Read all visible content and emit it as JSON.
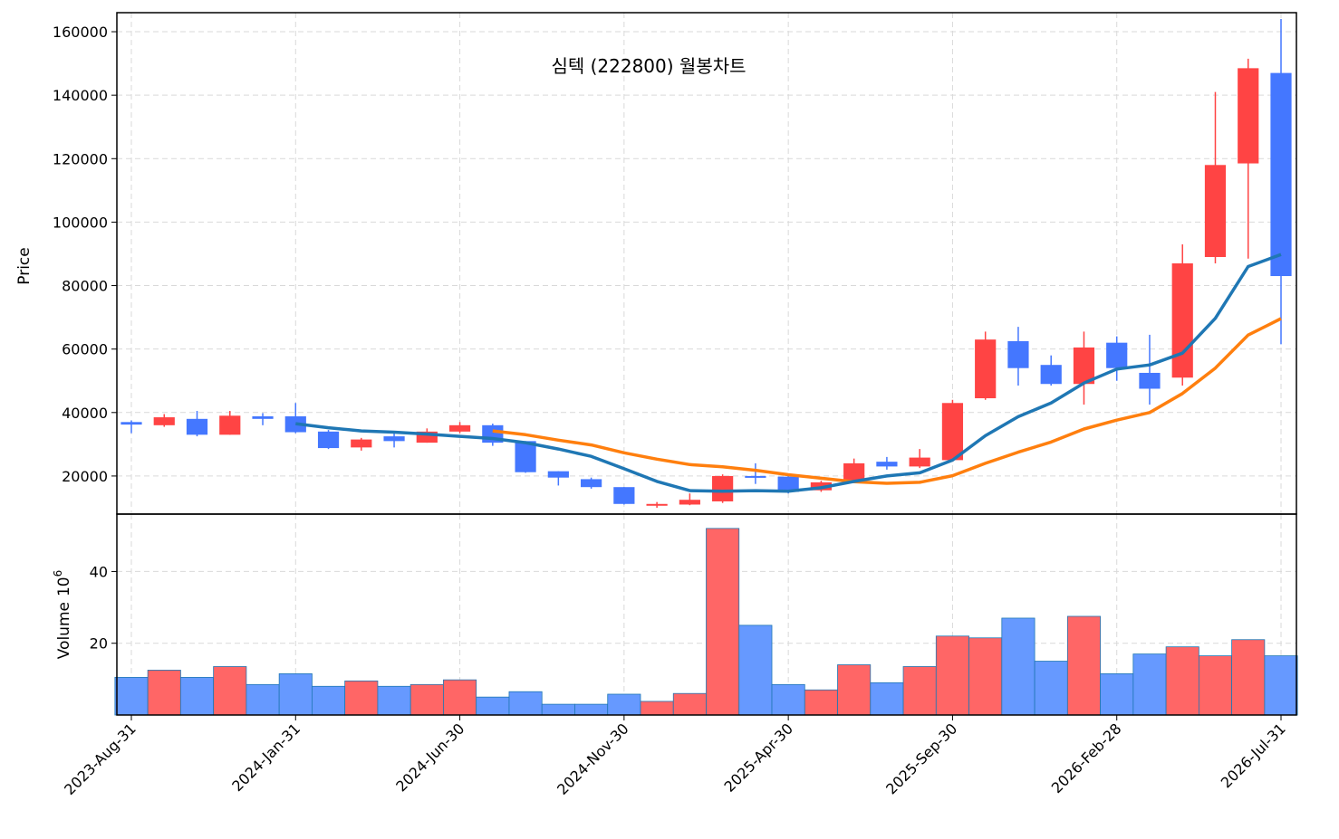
{
  "chart_data": {
    "type": "candlestick",
    "title": "심텍 (222800) 월봉차트",
    "ylabel": "Price",
    "volume_ylabel": "Volume",
    "volume_scale_label": "10",
    "volume_scale_exp": "6",
    "colors": {
      "up": "#ff4444",
      "down": "#4477ff",
      "up_volume": "#ff6666",
      "down_volume": "#6699ff",
      "ma_short": "#1f77b4",
      "ma_long": "#ff7f0e"
    },
    "price_ylim": [
      8000,
      166000
    ],
    "volume_ylim": [
      0,
      56
    ],
    "y_ticks": [
      20000,
      40000,
      60000,
      80000,
      100000,
      120000,
      140000,
      160000
    ],
    "y_tick_labels": [
      "20000",
      "40000",
      "60000",
      "80000",
      "100000",
      "120000",
      "140000",
      "160000"
    ],
    "volume_ticks": [
      20,
      40
    ],
    "volume_tick_labels": [
      "20",
      "40"
    ],
    "x_tick_indices": [
      0,
      5,
      10,
      15,
      20,
      25,
      30,
      35
    ],
    "x_tick_labels": [
      "2023-Aug-31",
      "2024-Jan-31",
      "2024-Jun-30",
      "2024-Nov-30",
      "2025-Apr-30",
      "2025-Sep-30",
      "2026-Feb-28",
      "2026-Jul-31"
    ],
    "candles": [
      {
        "o": 37000,
        "h": 37500,
        "l": 33500,
        "c": 36200,
        "v": 10.5
      },
      {
        "o": 36000,
        "h": 39500,
        "l": 35500,
        "c": 38500,
        "v": 12.5
      },
      {
        "o": 38000,
        "h": 40500,
        "l": 32500,
        "c": 33000,
        "v": 10.5
      },
      {
        "o": 33000,
        "h": 40500,
        "l": 33000,
        "c": 39000,
        "v": 13.5
      },
      {
        "o": 38800,
        "h": 39800,
        "l": 36000,
        "c": 38000,
        "v": 8.5
      },
      {
        "o": 38800,
        "h": 43000,
        "l": 33500,
        "c": 33800,
        "v": 11.5
      },
      {
        "o": 34000,
        "h": 34500,
        "l": 28500,
        "c": 28800,
        "v": 8.0
      },
      {
        "o": 29000,
        "h": 32000,
        "l": 28000,
        "c": 31500,
        "v": 9.5
      },
      {
        "o": 32500,
        "h": 34000,
        "l": 29000,
        "c": 31000,
        "v": 8.0
      },
      {
        "o": 30500,
        "h": 35000,
        "l": 30500,
        "c": 34000,
        "v": 8.5
      },
      {
        "o": 34000,
        "h": 37000,
        "l": 33500,
        "c": 36000,
        "v": 9.8
      },
      {
        "o": 36000,
        "h": 36500,
        "l": 29500,
        "c": 30500,
        "v": 5.0
      },
      {
        "o": 31000,
        "h": 31000,
        "l": 21000,
        "c": 21200,
        "v": 6.5
      },
      {
        "o": 21500,
        "h": 21500,
        "l": 17000,
        "c": 19500,
        "v": 3.0
      },
      {
        "o": 19000,
        "h": 19500,
        "l": 16000,
        "c": 16500,
        "v": 3.0
      },
      {
        "o": 16500,
        "h": 16500,
        "l": 11000,
        "c": 11200,
        "v": 5.8
      },
      {
        "o": 11000,
        "h": 11800,
        "l": 10000,
        "c": 11200,
        "v": 3.8
      },
      {
        "o": 11000,
        "h": 14500,
        "l": 10800,
        "c": 12500,
        "v": 6.0
      },
      {
        "o": 12000,
        "h": 20500,
        "l": 11500,
        "c": 20000,
        "v": 52.0
      },
      {
        "o": 20000,
        "h": 24000,
        "l": 17500,
        "c": 19500,
        "v": 25.0
      },
      {
        "o": 19800,
        "h": 20500,
        "l": 14500,
        "c": 15000,
        "v": 8.5
      },
      {
        "o": 15500,
        "h": 18500,
        "l": 15000,
        "c": 18000,
        "v": 7.0
      },
      {
        "o": 18500,
        "h": 25500,
        "l": 18000,
        "c": 24000,
        "v": 14.0
      },
      {
        "o": 24500,
        "h": 26000,
        "l": 22000,
        "c": 23000,
        "v": 9.0
      },
      {
        "o": 23000,
        "h": 28500,
        "l": 22500,
        "c": 25800,
        "v": 13.5
      },
      {
        "o": 25000,
        "h": 44000,
        "l": 24500,
        "c": 43000,
        "v": 22.0
      },
      {
        "o": 44500,
        "h": 65500,
        "l": 44000,
        "c": 63000,
        "v": 21.5
      },
      {
        "o": 62500,
        "h": 67000,
        "l": 48500,
        "c": 54000,
        "v": 27.0
      },
      {
        "o": 55000,
        "h": 58000,
        "l": 48500,
        "c": 49000,
        "v": 15.0
      },
      {
        "o": 49000,
        "h": 65500,
        "l": 42500,
        "c": 60500,
        "v": 27.5
      },
      {
        "o": 62000,
        "h": 64000,
        "l": 50000,
        "c": 54000,
        "v": 11.5
      },
      {
        "o": 52500,
        "h": 64500,
        "l": 42500,
        "c": 47500,
        "v": 17.0
      },
      {
        "o": 51000,
        "h": 93000,
        "l": 48500,
        "c": 87000,
        "v": 19.0
      },
      {
        "o": 89000,
        "h": 141000,
        "l": 87000,
        "c": 118000,
        "v": 16.5
      },
      {
        "o": 118500,
        "h": 151500,
        "l": 88500,
        "c": 148500,
        "v": 21.0
      },
      {
        "o": 147000,
        "h": 164000,
        "l": 61500,
        "c": 83000,
        "v": 16.5
      }
    ],
    "ma_short": [
      null,
      null,
      null,
      null,
      null,
      36500,
      35200,
      34200,
      33800,
      33200,
      32500,
      31800,
      30500,
      28500,
      26200,
      22300,
      18300,
      15400,
      15200,
      15400,
      15200,
      16300,
      18300,
      20000,
      21000,
      25000,
      32700,
      38700,
      43000,
      49300,
      53700,
      55000,
      58700,
      69700,
      86000,
      89800
    ],
    "ma_long": [
      null,
      null,
      null,
      null,
      null,
      null,
      null,
      null,
      null,
      null,
      null,
      34200,
      33000,
      31300,
      29800,
      27300,
      25300,
      23600,
      22900,
      21800,
      20400,
      19300,
      18200,
      17700,
      18000,
      20100,
      24000,
      27500,
      30700,
      34800,
      37600,
      40000,
      46000,
      54000,
      64400,
      69600
    ]
  }
}
